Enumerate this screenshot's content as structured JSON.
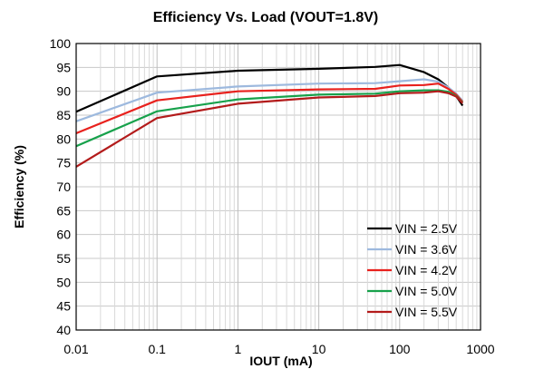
{
  "chart_data": {
    "type": "line",
    "title": "Efficiency Vs. Load (VOUT=1.8V)",
    "xlabel": "IOUT (mA)",
    "ylabel": "Efficiency (%)",
    "x_scale": "log",
    "xlim": [
      0.01,
      1000
    ],
    "ylim": [
      40,
      100
    ],
    "x_ticks": [
      0.01,
      0.1,
      1,
      10,
      100,
      1000
    ],
    "x_tick_labels": [
      "0.01",
      "0.1",
      "1",
      "10",
      "100",
      "1000"
    ],
    "y_ticks": [
      40,
      45,
      50,
      55,
      60,
      65,
      70,
      75,
      80,
      85,
      90,
      95,
      100
    ],
    "y_tick_labels": [
      "40",
      "45",
      "50",
      "55",
      "60",
      "65",
      "70",
      "75",
      "80",
      "85",
      "90",
      "95",
      "100"
    ],
    "grid": true,
    "legend_position": "bottom-right",
    "series": [
      {
        "name": "VIN = 2.5V",
        "color": "#000000",
        "points": [
          [
            0.01,
            85.7
          ],
          [
            0.1,
            93.1
          ],
          [
            1,
            94.3
          ],
          [
            10,
            94.7
          ],
          [
            50,
            95.1
          ],
          [
            100,
            95.5
          ],
          [
            200,
            94.0
          ],
          [
            300,
            92.5
          ],
          [
            400,
            90.8
          ],
          [
            500,
            89.0
          ],
          [
            600,
            87.0
          ]
        ]
      },
      {
        "name": "VIN = 3.6V",
        "color": "#9DB9DE",
        "points": [
          [
            0.01,
            83.7
          ],
          [
            0.1,
            89.7
          ],
          [
            1,
            91.0
          ],
          [
            10,
            91.6
          ],
          [
            50,
            91.7
          ],
          [
            100,
            92.1
          ],
          [
            200,
            92.5
          ],
          [
            300,
            92.0
          ],
          [
            400,
            90.8
          ],
          [
            500,
            89.5
          ],
          [
            600,
            88.0
          ]
        ]
      },
      {
        "name": "VIN = 4.2V",
        "color": "#E8211D",
        "points": [
          [
            0.01,
            81.2
          ],
          [
            0.1,
            88.1
          ],
          [
            1,
            90.0
          ],
          [
            10,
            90.4
          ],
          [
            50,
            90.5
          ],
          [
            100,
            91.2
          ],
          [
            200,
            91.3
          ],
          [
            300,
            91.6
          ],
          [
            400,
            90.5
          ],
          [
            500,
            89.3
          ],
          [
            600,
            87.8
          ]
        ]
      },
      {
        "name": "VIN = 5.0V",
        "color": "#17A14B",
        "points": [
          [
            0.01,
            78.5
          ],
          [
            0.1,
            85.8
          ],
          [
            1,
            88.3
          ],
          [
            10,
            89.3
          ],
          [
            50,
            89.5
          ],
          [
            100,
            90.0
          ],
          [
            200,
            90.2
          ],
          [
            300,
            90.2
          ],
          [
            400,
            89.9
          ],
          [
            500,
            89.0
          ],
          [
            600,
            87.6
          ]
        ]
      },
      {
        "name": "VIN = 5.5V",
        "color": "#B31B1B",
        "points": [
          [
            0.01,
            74.2
          ],
          [
            0.1,
            84.4
          ],
          [
            1,
            87.4
          ],
          [
            10,
            88.7
          ],
          [
            50,
            89.0
          ],
          [
            100,
            89.6
          ],
          [
            200,
            89.7
          ],
          [
            300,
            90.0
          ],
          [
            400,
            89.6
          ],
          [
            500,
            88.9
          ],
          [
            600,
            87.5
          ]
        ]
      }
    ]
  }
}
